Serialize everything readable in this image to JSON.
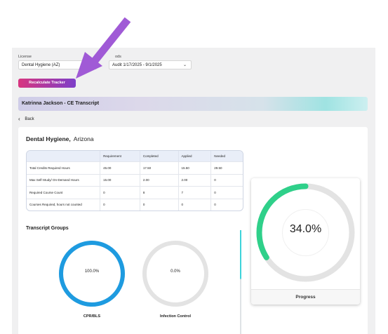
{
  "filters": {
    "license_label": "License",
    "license_value": "Dental Hygiene (AZ)",
    "period_label": "ods",
    "period_value": "Audit 1/17/2025 - 9/1/2025"
  },
  "actions": {
    "recalc_label": "Recalculate Tracker"
  },
  "banner": {
    "title": "Katrinna Jackson - CE Transcript"
  },
  "nav": {
    "back_label": "Back"
  },
  "course": {
    "name": "Dental Hygiene,",
    "state": "Arizona"
  },
  "requirements_table": {
    "headers": [
      "",
      "Requirement",
      "Completed",
      "Applied",
      "Needed"
    ],
    "rows": [
      [
        "Total Credits Required Hours",
        "45.00",
        "17.50",
        "15.50",
        "29.50"
      ],
      [
        "Max Self-Study/ On-Demand Hours",
        "15.00",
        "2.00",
        "2.00",
        "0"
      ],
      [
        "Required Course Count",
        "0",
        "8",
        "7",
        "0"
      ],
      [
        "Courses Required, hours not counted",
        "0",
        "0",
        "0",
        "0"
      ]
    ]
  },
  "groups": {
    "title": "Transcript Groups",
    "items": [
      {
        "name": "CPR/BLS",
        "percent_text": "100.0%",
        "fraction": 1.0,
        "color": "#1e9be0"
      },
      {
        "name": "Infection Control",
        "percent_text": "0.0%",
        "fraction": 0.0,
        "color": "#1e9be0"
      }
    ]
  },
  "progress": {
    "percent_text": "34.0%",
    "fraction": 0.34,
    "label": "Progress",
    "color": "#2fd08a"
  },
  "colors": {
    "arrow": "#a05ad6",
    "track": "#e3e3e3"
  }
}
